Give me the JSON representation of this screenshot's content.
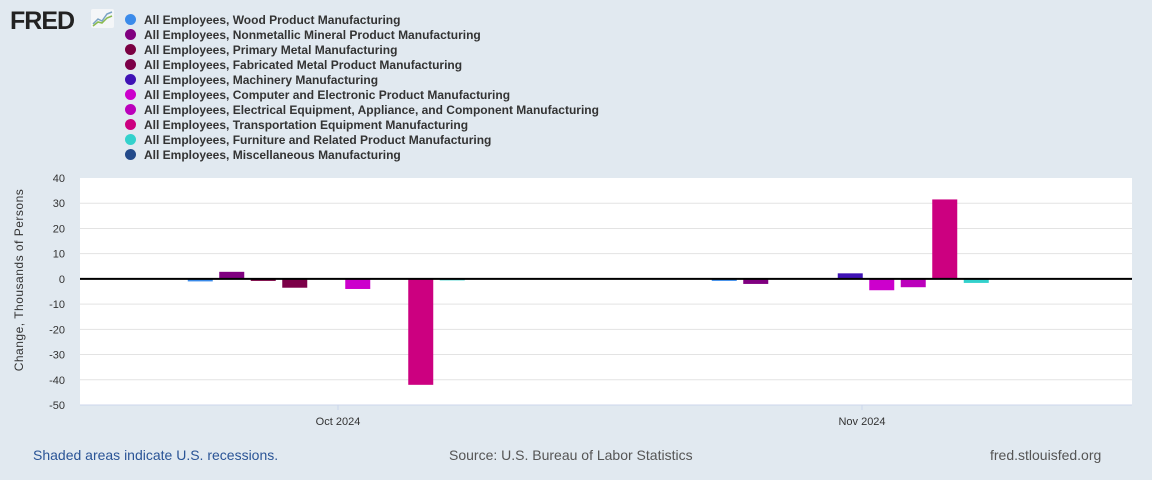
{
  "logo": "FRED",
  "footer": {
    "recessions": "Shaded areas indicate U.S. recessions.",
    "source": "Source: U.S. Bureau of Labor Statistics",
    "site": "fred.stlouisfed.org"
  },
  "chart_data": {
    "type": "bar",
    "ylabel": "Change, Thousands of Persons",
    "ylim": [
      -50,
      40
    ],
    "yticks": [
      40,
      30,
      20,
      10,
      0,
      -10,
      -20,
      -30,
      -40,
      -50
    ],
    "categories": [
      "Oct 2024",
      "Nov 2024"
    ],
    "legend_position": "top-left",
    "series": [
      {
        "name": "All Employees, Wood Product Manufacturing",
        "color": "#3b8bea",
        "values": [
          -1.0,
          -0.8
        ]
      },
      {
        "name": "All Employees, Nonmetallic Mineral Product Manufacturing",
        "color": "#800080",
        "values": [
          2.8,
          -2.0
        ]
      },
      {
        "name": "All Employees, Primary Metal Manufacturing",
        "color": "#7a0042",
        "values": [
          -0.8,
          0
        ]
      },
      {
        "name": "All Employees, Fabricated Metal Product Manufacturing",
        "color": "#7c0048",
        "values": [
          -3.5,
          0
        ]
      },
      {
        "name": "All Employees, Machinery Manufacturing",
        "color": "#3f12b5",
        "values": [
          0,
          2.2
        ]
      },
      {
        "name": "All Employees, Computer and Electronic Product Manufacturing",
        "color": "#cc00cc",
        "values": [
          -4.0,
          -4.5
        ]
      },
      {
        "name": "All Employees, Electrical Equipment, Appliance, and Component Manufacturing",
        "color": "#bb00bb",
        "values": [
          0,
          -3.3
        ]
      },
      {
        "name": "All Employees, Transportation Equipment Manufacturing",
        "color": "#cc0080",
        "values": [
          -42.0,
          31.5
        ]
      },
      {
        "name": "All Employees, Furniture and Related Product Manufacturing",
        "color": "#33d1cc",
        "values": [
          -0.5,
          -1.6
        ]
      },
      {
        "name": "All Employees, Miscellaneous Manufacturing",
        "color": "#234a8a",
        "values": [
          0,
          0
        ]
      }
    ]
  }
}
